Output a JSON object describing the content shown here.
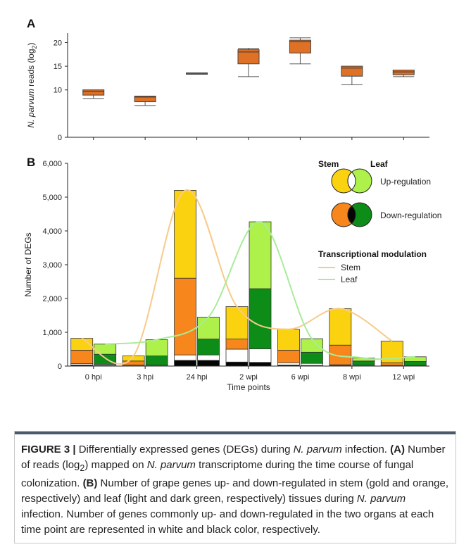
{
  "panel_a_letter": "A",
  "panel_b_letter": "B",
  "chart_data": [
    {
      "type": "box",
      "panel": "A",
      "ylabel_prefix": "N. parvum",
      "ylabel_rest": " reads (log",
      "ylabel_sub": "2",
      "ylabel_close": ")",
      "ylim": [
        0,
        22
      ],
      "yticks": [
        "0",
        "10",
        "15",
        "20"
      ],
      "categories": [
        "0 hpi",
        "3 hpi",
        "24 hpi",
        "2 wpi",
        "6 wpi",
        "8 wpi",
        "12 wpi"
      ],
      "boxes": [
        {
          "min": 8.2,
          "q1": 8.9,
          "median": 9.7,
          "q3": 10.0,
          "max": 10.0
        },
        {
          "min": 6.7,
          "q1": 7.5,
          "median": 8.5,
          "q3": 8.7,
          "max": 8.7
        },
        {
          "min": 13.3,
          "q1": 13.4,
          "median": 13.5,
          "q3": 13.6,
          "max": 13.6
        },
        {
          "min": 12.8,
          "q1": 15.5,
          "median": 18.0,
          "q3": 18.5,
          "max": 18.8
        },
        {
          "min": 15.5,
          "q1": 17.8,
          "median": 20.2,
          "q3": 20.5,
          "max": 21.0
        },
        {
          "min": 11.1,
          "q1": 12.9,
          "median": 14.6,
          "q3": 15.0,
          "max": 15.0
        },
        {
          "min": 12.8,
          "q1": 13.2,
          "median": 13.8,
          "q3": 14.2,
          "max": 14.2
        }
      ],
      "color": "#de7126"
    },
    {
      "type": "bar",
      "panel": "B",
      "stacked": true,
      "xlabel": "Time points",
      "ylabel": "Number of DEGs",
      "ylim": [
        0,
        6000
      ],
      "yticks": [
        "0",
        "1,000",
        "2,000",
        "3,000",
        "4,000",
        "5,000",
        "6,000"
      ],
      "categories": [
        "0 hpi",
        "3 hpi",
        "24 hpi",
        "2 wpi",
        "6 wpi",
        "8 wpi",
        "12 wpi"
      ],
      "stem": {
        "black": [
          30,
          10,
          170,
          120,
          30,
          20,
          10
        ],
        "white": [
          40,
          20,
          160,
          380,
          70,
          20,
          10
        ],
        "orange": [
          400,
          120,
          2270,
          300,
          370,
          580,
          80
        ],
        "gold": [
          350,
          150,
          2600,
          960,
          620,
          1080,
          640
        ]
      },
      "leaf": {
        "black": [
          20,
          10,
          170,
          110,
          20,
          10,
          5
        ],
        "white": [
          30,
          20,
          160,
          400,
          60,
          20,
          10
        ],
        "dark_green": [
          300,
          270,
          470,
          1780,
          330,
          120,
          120
        ],
        "light_green": [
          300,
          480,
          650,
          1980,
          400,
          90,
          140
        ]
      },
      "colors": {
        "gold": "#fbd20f",
        "orange": "#f7871c",
        "light_green": "#aef14a",
        "dark_green": "#0d8d17",
        "white": "#ffffff",
        "black": "#050505",
        "stem_line": "#f8ca8a",
        "leaf_line": "#a8ec9a"
      },
      "legend": {
        "stem_header": "Stem",
        "leaf_header": "Leaf",
        "up_label": "Up-regulation",
        "down_label": "Down-regulation",
        "modulation_title": "Transcriptional modulation",
        "stem_line_label": "Stem",
        "leaf_line_label": "Leaf"
      },
      "legend_placement": "top-right"
    }
  ],
  "caption": {
    "label": "FIGURE 3 |",
    "p1": " Differentially expressed genes (DEGs) during ",
    "species": "N. parvum",
    "p2": " infection. ",
    "a_label": "(A)",
    "p3": " Number of reads (log",
    "sub": "2",
    "p4": ") mapped on ",
    "p5": " transcriptome during the time course of fungal colonization. ",
    "b_label": "(B)",
    "p6": " Number of grape genes up- and down-regulated in stem (gold and orange, respectively) and leaf (light and dark green, respectively) tissues during ",
    "p7": " infection. Number of genes commonly up- and down-regulated in the two organs at each time point are represented in white and black color, respectively."
  }
}
